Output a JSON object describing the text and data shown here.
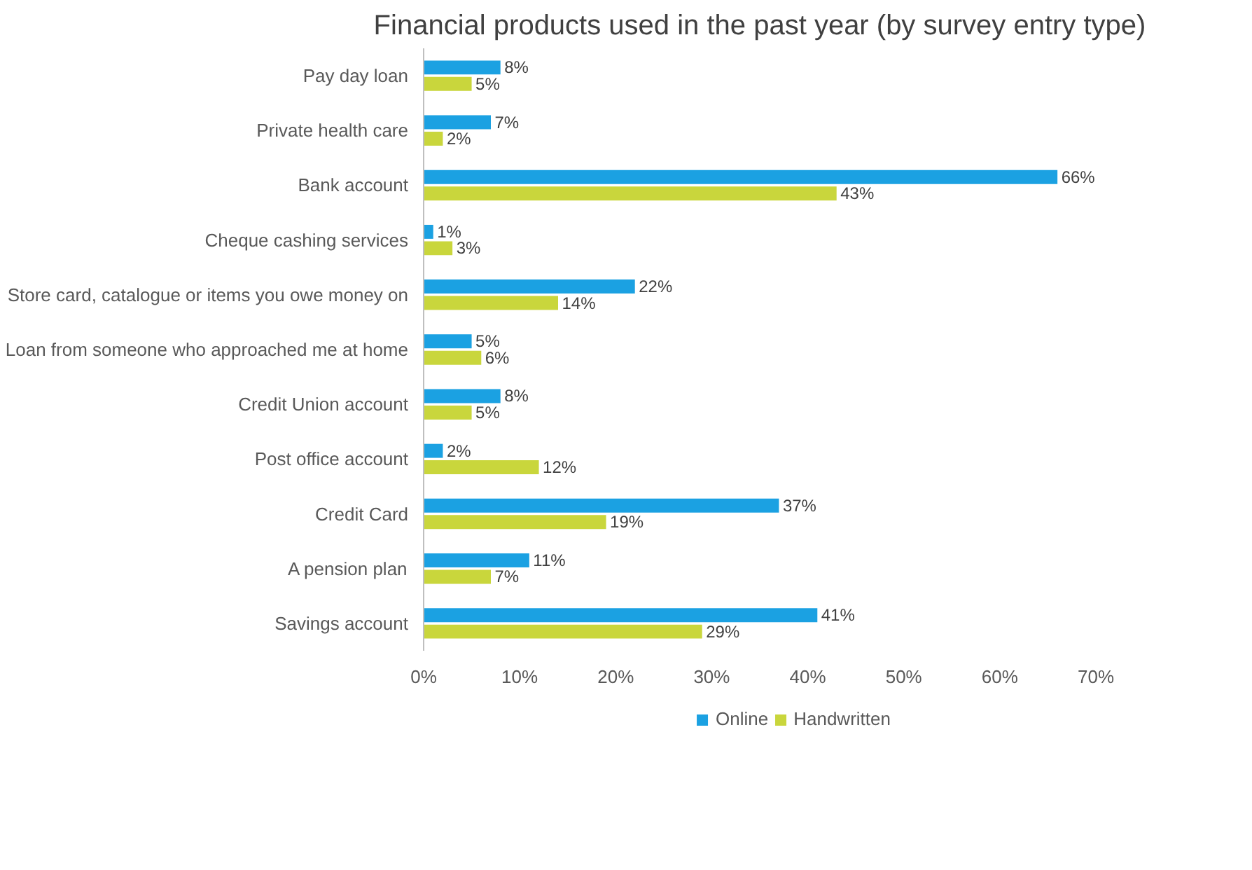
{
  "chart_data": {
    "type": "bar",
    "orientation": "horizontal",
    "title": "Financial products used in the past year (by survey entry type)",
    "categories": [
      "Pay day loan",
      "Private health care",
      "Bank account",
      "Cheque cashing services",
      "Store card, catalogue or items you owe money on",
      "Loan from someone who approached me at home",
      "Credit Union account",
      "Post office account",
      "Credit Card",
      "A pension plan",
      "Savings account"
    ],
    "series": [
      {
        "name": "Online",
        "color": "#1ba1e2",
        "values": [
          8,
          7,
          66,
          1,
          22,
          5,
          8,
          2,
          37,
          11,
          41
        ],
        "value_labels": [
          "8%",
          "7%",
          "66%",
          "1%",
          "22%",
          "5%",
          "8%",
          "2%",
          "37%",
          "11%",
          "41%"
        ]
      },
      {
        "name": "Handwritten",
        "color": "#c9d63c",
        "values": [
          5,
          2,
          43,
          3,
          14,
          6,
          5,
          12,
          19,
          7,
          29
        ],
        "value_labels": [
          "5%",
          "2%",
          "43%",
          "3%",
          "14%",
          "6%",
          "5%",
          "12%",
          "19%",
          "7%",
          "29%"
        ]
      }
    ],
    "xlim": [
      0,
      70
    ],
    "xticks": [
      {
        "value": 0,
        "label": "0%"
      },
      {
        "value": 10,
        "label": "10%"
      },
      {
        "value": 20,
        "label": "20%"
      },
      {
        "value": 30,
        "label": "30%"
      },
      {
        "value": 40,
        "label": "40%"
      },
      {
        "value": 50,
        "label": "50%"
      },
      {
        "value": 60,
        "label": "60%"
      },
      {
        "value": 70,
        "label": "70%"
      }
    ],
    "legend": "bottom"
  }
}
